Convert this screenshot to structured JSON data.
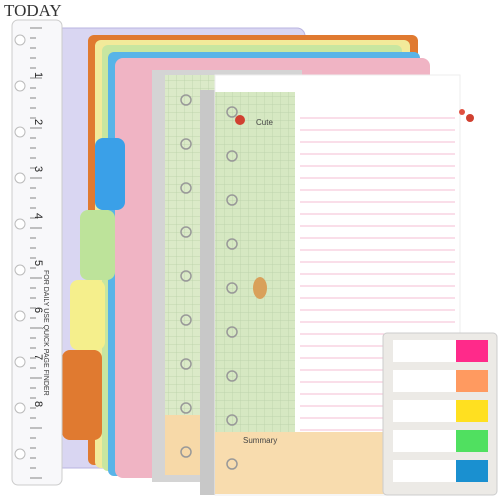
{
  "texts": {
    "today": "TODAY",
    "cute": "Cute",
    "summary": "Summary",
    "ruler_caption": "FOR DAILY USE QUICK PAGE FINDER"
  },
  "ruler_numbers": [
    "1",
    "2",
    "3",
    "4",
    "5",
    "6",
    "7",
    "8"
  ]
}
